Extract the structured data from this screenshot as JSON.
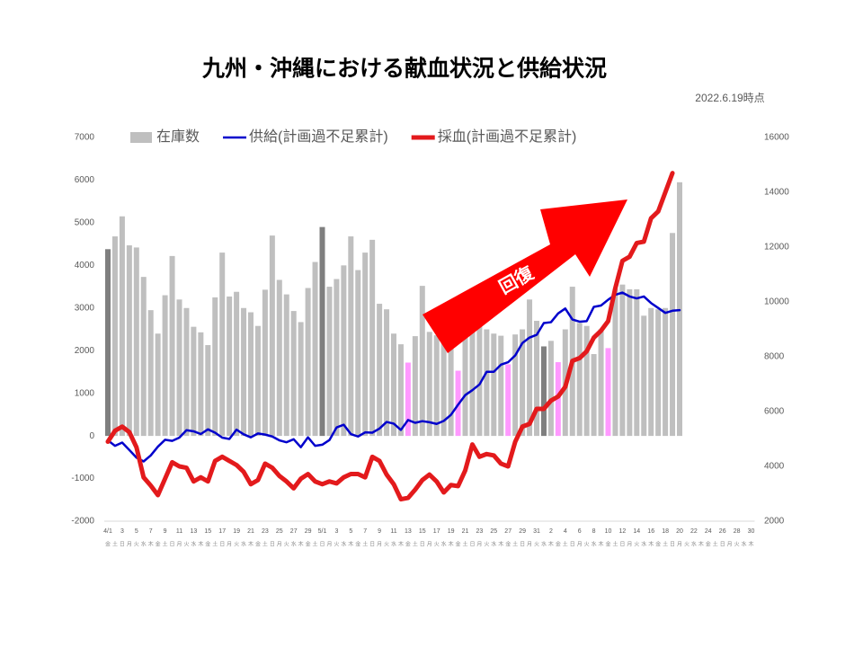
{
  "chart_data": {
    "type": "bar",
    "title": "九州・沖縄における献血状況と供給状況",
    "subtitle": "2022.6.19時点",
    "annotation": "回復",
    "categories": [
      "4/1",
      null,
      "3",
      null,
      "5",
      null,
      "7",
      null,
      "9",
      null,
      "11",
      null,
      "13",
      null,
      "15",
      null,
      "17",
      null,
      "19",
      null,
      "21",
      null,
      "23",
      null,
      "25",
      null,
      "27",
      null,
      "29",
      null,
      "5/1",
      null,
      "3",
      null,
      "5",
      null,
      "7",
      null,
      "9",
      null,
      "11",
      null,
      "13",
      null,
      "15",
      null,
      "17",
      null,
      "19",
      null,
      "21",
      null,
      "23",
      null,
      "25",
      null,
      "27",
      null,
      "29",
      null,
      "31",
      null,
      "2",
      null,
      "4",
      null,
      "6",
      null,
      "8",
      null,
      "10",
      null,
      "12",
      null,
      "14",
      null,
      "16",
      null,
      "18",
      null,
      "20",
      null,
      "22",
      null,
      "24",
      null,
      "26",
      null,
      "28",
      null,
      "30"
    ],
    "weekdays": [
      "金",
      "土",
      "日",
      "月",
      "火",
      "水",
      "木",
      "金",
      "土",
      "日",
      "月",
      "火",
      "水",
      "木",
      "金",
      "土",
      "日",
      "月",
      "火",
      "水",
      "木",
      "金",
      "土",
      "日",
      "月",
      "火",
      "水",
      "木",
      "金",
      "土",
      "日",
      "月",
      "火",
      "水",
      "木",
      "金",
      "土",
      "日",
      "月",
      "火",
      "水",
      "木",
      "金",
      "土",
      "日",
      "月",
      "火",
      "水",
      "木",
      "金",
      "土",
      "日",
      "月",
      "火",
      "水",
      "木",
      "金",
      "土",
      "日",
      "月",
      "火",
      "水",
      "木",
      "金",
      "土",
      "日",
      "月",
      "火",
      "水",
      "木",
      "金",
      "土",
      "日",
      "月",
      "火",
      "水",
      "木",
      "金",
      "土",
      "日",
      "月",
      "火",
      "水",
      "木",
      "金",
      "土",
      "日",
      "月",
      "火",
      "水",
      "木"
    ],
    "series": [
      {
        "name": "在庫数",
        "type": "bar",
        "axis": "y",
        "color": "#bfbfbf",
        "colors": [
          "#7f7f7f",
          "#bfbfbf",
          "#bfbfbf",
          "#bfbfbf",
          "#bfbfbf",
          "#bfbfbf",
          "#bfbfbf",
          "#bfbfbf",
          "#bfbfbf",
          "#bfbfbf",
          "#bfbfbf",
          "#bfbfbf",
          "#bfbfbf",
          "#bfbfbf",
          "#bfbfbf",
          "#bfbfbf",
          "#bfbfbf",
          "#bfbfbf",
          "#bfbfbf",
          "#bfbfbf",
          "#bfbfbf",
          "#bfbfbf",
          "#bfbfbf",
          "#bfbfbf",
          "#bfbfbf",
          "#bfbfbf",
          "#bfbfbf",
          "#bfbfbf",
          "#bfbfbf",
          "#bfbfbf",
          "#7f7f7f",
          "#bfbfbf",
          "#bfbfbf",
          "#bfbfbf",
          "#bfbfbf",
          "#bfbfbf",
          "#bfbfbf",
          "#bfbfbf",
          "#bfbfbf",
          "#bfbfbf",
          "#bfbfbf",
          "#bfbfbf",
          "#ff99ff",
          "#bfbfbf",
          "#bfbfbf",
          "#bfbfbf",
          "#bfbfbf",
          "#bfbfbf",
          "#bfbfbf",
          "#ff99ff",
          "#bfbfbf",
          "#bfbfbf",
          "#bfbfbf",
          "#bfbfbf",
          "#bfbfbf",
          "#bfbfbf",
          "#ff99ff",
          "#bfbfbf",
          "#bfbfbf",
          "#bfbfbf",
          "#bfbfbf",
          "#7f7f7f",
          "#bfbfbf",
          "#ff99ff",
          "#bfbfbf",
          "#bfbfbf",
          "#bfbfbf",
          "#bfbfbf",
          "#bfbfbf",
          "#bfbfbf",
          "#ff99ff",
          "#bfbfbf",
          "#bfbfbf",
          "#bfbfbf",
          "#bfbfbf",
          "#bfbfbf",
          "#bfbfbf",
          "#bfbfbf",
          "#bfbfbf",
          "#bfbfbf",
          "#bfbfbf",
          null,
          null,
          null,
          null,
          null,
          null,
          null,
          null,
          null,
          null
        ],
        "values": [
          4380,
          4680,
          5150,
          4470,
          4420,
          3730,
          2950,
          2400,
          3300,
          4220,
          3200,
          3000,
          2560,
          2430,
          2130,
          3250,
          4300,
          3270,
          3380,
          3000,
          2900,
          2580,
          3430,
          4700,
          3660,
          3320,
          2930,
          2670,
          3470,
          4080,
          4900,
          3500,
          3680,
          4000,
          4680,
          3890,
          4300,
          4600,
          3100,
          2970,
          2400,
          2150,
          1720,
          2340,
          3520,
          2440,
          2360,
          2300,
          2200,
          1530,
          2400,
          2500,
          2600,
          2500,
          2400,
          2350,
          1680,
          2380,
          2500,
          3200,
          2700,
          2100,
          2230,
          1730,
          2500,
          3500,
          2650,
          2580,
          1920,
          2500,
          2060,
          3450,
          3550,
          3440,
          3440,
          2820,
          3000,
          2970,
          3000,
          4760,
          5950,
          null,
          null,
          null,
          null,
          null,
          null,
          null,
          null,
          null,
          null
        ]
      },
      {
        "name": "供給(計画過不足累計)",
        "type": "line",
        "axis": "y2",
        "color": "#0000cc",
        "values": [
          4950,
          4750,
          4870,
          4600,
          4320,
          4180,
          4400,
          4720,
          4970,
          4930,
          5050,
          5320,
          5280,
          5180,
          5350,
          5230,
          5050,
          5000,
          5340,
          5170,
          5060,
          5200,
          5160,
          5090,
          4950,
          4880,
          4990,
          4700,
          5060,
          4750,
          4790,
          4960,
          5420,
          5520,
          5180,
          5090,
          5240,
          5230,
          5380,
          5620,
          5560,
          5330,
          5690,
          5590,
          5650,
          5610,
          5550,
          5660,
          5880,
          6250,
          6600,
          6780,
          6990,
          7450,
          7450,
          7710,
          7800,
          8050,
          8500,
          8700,
          8800,
          9230,
          9260,
          9580,
          9760,
          9360,
          9280,
          9300,
          9820,
          9870,
          10080,
          10260,
          10340,
          10200,
          10130,
          10200,
          9960,
          9780,
          9600,
          9680,
          9700,
          null,
          null,
          null,
          null,
          null,
          null,
          null,
          null,
          null,
          null
        ]
      },
      {
        "name": "採血(計画過不足累計)",
        "type": "line",
        "axis": "y2",
        "color": "#e31a1c",
        "values": [
          4900,
          5300,
          5450,
          5250,
          4700,
          3600,
          3300,
          2950,
          3550,
          4150,
          4000,
          3950,
          3450,
          3600,
          3450,
          4200,
          4350,
          4200,
          4050,
          3800,
          3350,
          3500,
          4100,
          3950,
          3650,
          3450,
          3200,
          3550,
          3720,
          3450,
          3350,
          3450,
          3380,
          3600,
          3720,
          3720,
          3600,
          4350,
          4200,
          3700,
          3350,
          2800,
          2850,
          3150,
          3500,
          3700,
          3450,
          3050,
          3320,
          3280,
          3850,
          4800,
          4350,
          4450,
          4400,
          4100,
          4000,
          4900,
          5450,
          5550,
          6100,
          6100,
          6400,
          6550,
          6900,
          7850,
          7950,
          8200,
          8700,
          8950,
          9300,
          10500,
          11500,
          11650,
          12150,
          12200,
          13050,
          13300,
          14000,
          14700,
          null,
          null,
          null,
          null,
          null,
          null,
          null,
          null,
          null,
          null,
          null
        ]
      }
    ],
    "ylim": [
      -2000,
      7000
    ],
    "yticks": [
      -2000,
      -1000,
      0,
      1000,
      2000,
      3000,
      4000,
      5000,
      6000,
      7000
    ],
    "y2lim": [
      2000,
      16000
    ],
    "y2ticks": [
      2000,
      4000,
      6000,
      8000,
      10000,
      12000,
      14000,
      16000
    ],
    "grid": false,
    "arrow_color": "#ff0000"
  }
}
